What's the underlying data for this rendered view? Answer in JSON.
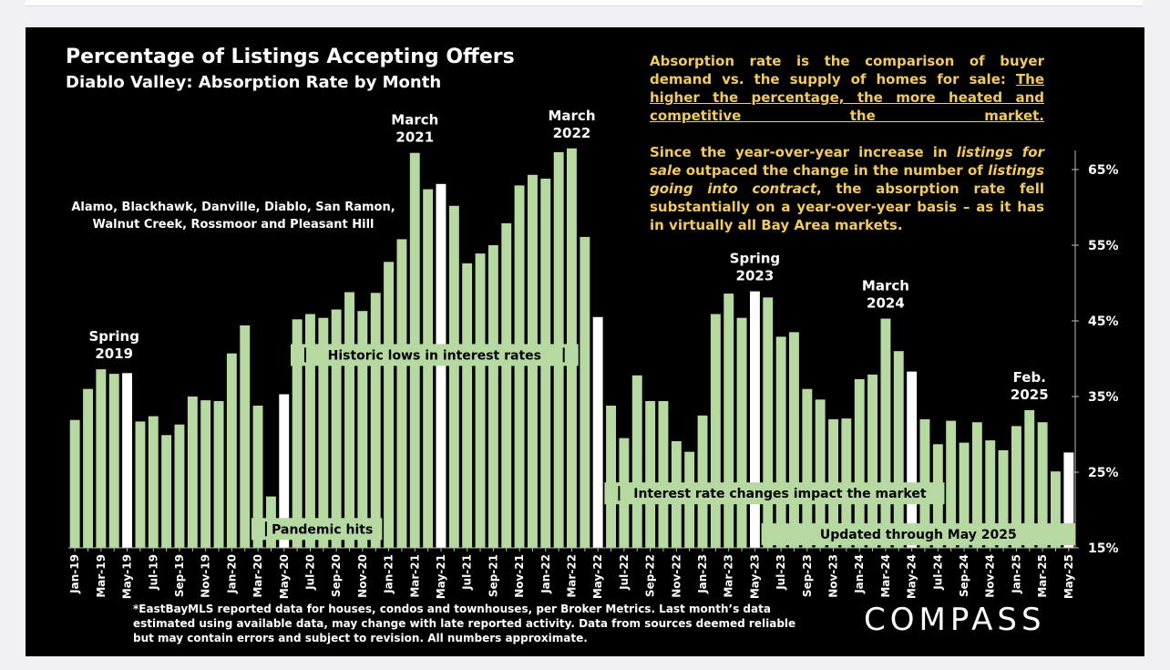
{
  "header": {
    "title": "Percentage of Listings Accepting Offers",
    "subtitle": "Diablo Valley:  Absorption Rate by Month",
    "region": "Alamo, Blackhawk, Danville, Diablo, San Ramon, Walnut Creek, Rossmoor and Pleasant Hill"
  },
  "notes": {
    "n1_part1": "Absorption rate is the comparison of buyer demand vs. the supply of homes for sale: ",
    "n1_part2": "The higher the percentage, the more heated and competitive the market.",
    "n2_a": "Since the year-over-year increase in ",
    "n2_b": "listings for sale",
    "n2_c": " outpaced the change in the number of ",
    "n2_d": "listings going into contract",
    "n2_e": ", the absorption rate fell substantially on a year-over-year basis – as it has in virtually all Bay Area markets."
  },
  "footnote": "*EastBayMLS reported data for houses, condos and townhouses, per Broker Metrics. Last month’s data estimated using available data, may change with late reported activity. Data from sources deemed reliable but may contain errors and subject to revision. All numbers approximate.",
  "logo": "COMPASS",
  "colors": {
    "bar": "#b5d9a0",
    "highlight": "#ffffff",
    "label_bg": "#b5d9a0",
    "note_text": "#f0c960"
  },
  "chart_data": {
    "type": "bar",
    "ylim": [
      15,
      68
    ],
    "yticks": [
      15,
      25,
      35,
      45,
      55,
      65
    ],
    "ytick_labels": [
      "15%",
      "25%",
      "35%",
      "45%",
      "55%",
      "65%"
    ],
    "categories": [
      "Jan-19",
      "Feb-19",
      "Mar-19",
      "Apr-19",
      "May-19",
      "Jun-19",
      "Jul-19",
      "Aug-19",
      "Sep-19",
      "Oct-19",
      "Nov-19",
      "Dec-19",
      "Jan-20",
      "Feb-20",
      "Mar-20",
      "Apr-20",
      "May-20",
      "Jun-20",
      "Jul-20",
      "Aug-20",
      "Sep-20",
      "Oct-20",
      "Nov-20",
      "Dec-20",
      "Jan-21",
      "Feb-21",
      "Mar-21",
      "Apr-21",
      "May-21",
      "Jun-21",
      "Jul-21",
      "Aug-21",
      "Sep-21",
      "Oct-21",
      "Nov-21",
      "Dec-21",
      "Jan-22",
      "Feb-22",
      "Mar-22",
      "Apr-22",
      "May-22",
      "Jun-22",
      "Jul-22",
      "Aug-22",
      "Sep-22",
      "Oct-22",
      "Nov-22",
      "Dec-22",
      "Jan-23",
      "Feb-23",
      "Mar-23",
      "Apr-23",
      "May-23",
      "Jun-23",
      "Jul-23",
      "Aug-23",
      "Sep-23",
      "Oct-23",
      "Nov-23",
      "Dec-23",
      "Jan-24",
      "Feb-24",
      "Mar-24",
      "Apr-24",
      "May-24",
      "Jun-24",
      "Jul-24",
      "Aug-24",
      "Sep-24",
      "Oct-24",
      "Nov-24",
      "Dec-24",
      "Jan-25",
      "Feb-25",
      "Mar-25",
      "Apr-25",
      "May-25"
    ],
    "xtick_labels": [
      "Jan-19",
      "Mar-19",
      "May-19",
      "Jul-19",
      "Sep-19",
      "Nov-19",
      "Jan-20",
      "Mar-20",
      "May-20",
      "Jul-20",
      "Sep-20",
      "Nov-20",
      "Jan-21",
      "Mar-21",
      "May-21",
      "Jul-21",
      "Sep-21",
      "Nov-21",
      "Jan-22",
      "Mar-22",
      "May-22",
      "Jul-22",
      "Sep-22",
      "Nov-22",
      "Jan-23",
      "Mar-23",
      "May-23",
      "Jul-23",
      "Sep-23",
      "Nov-23",
      "Jan-24",
      "Mar-24",
      "May-24",
      "Jul-24",
      "Sep-24",
      "Nov-24",
      "Jan-25",
      "Mar-25",
      "May-25"
    ],
    "values": [
      31.9,
      36.0,
      38.6,
      38.0,
      38.1,
      31.7,
      32.4,
      29.9,
      31.3,
      35.0,
      34.5,
      34.4,
      40.7,
      44.4,
      33.8,
      21.8,
      35.3,
      45.2,
      45.9,
      45.4,
      46.5,
      48.8,
      46.3,
      48.7,
      52.8,
      55.8,
      67.2,
      62.4,
      63.1,
      60.2,
      52.6,
      53.9,
      55.0,
      57.9,
      62.9,
      64.3,
      63.8,
      67.3,
      67.8,
      56.1,
      45.5,
      33.8,
      29.5,
      37.8,
      34.4,
      34.4,
      29.1,
      27.7,
      32.5,
      45.9,
      48.6,
      45.4,
      48.9,
      48.1,
      42.9,
      43.5,
      36.0,
      34.6,
      32.0,
      32.1,
      37.3,
      37.9,
      45.3,
      41.0,
      38.3,
      32.0,
      28.7,
      31.8,
      28.9,
      31.6,
      29.2,
      27.9,
      31.1,
      33.2,
      31.6,
      25.1,
      27.6
    ],
    "highlighted": [
      "May-19",
      "May-20",
      "May-21",
      "May-22",
      "May-23",
      "May-24",
      "May-25"
    ],
    "annotations": [
      {
        "lines": [
          "Spring",
          "2019"
        ],
        "at": "Apr-19"
      },
      {
        "lines": [
          "March",
          "2021"
        ],
        "at": "Mar-21"
      },
      {
        "lines": [
          "March",
          "2022"
        ],
        "at": "Mar-22"
      },
      {
        "lines": [
          "Spring",
          "2023"
        ],
        "at": "May-23"
      },
      {
        "lines": [
          "March",
          "2024"
        ],
        "at": "Mar-24"
      },
      {
        "lines": [
          "Feb.",
          "2025"
        ],
        "at": "Feb-25"
      }
    ],
    "range_labels": [
      {
        "text": "Historic lows in interest rates",
        "from": "Jun-20",
        "to": "Mar-22",
        "y": 40.5,
        "bracket": "both"
      },
      {
        "text": "Pandemic hits",
        "from": "Mar-20",
        "to": "Dec-20",
        "y": 17.5,
        "bracket": "left"
      },
      {
        "text": "Interest rate changes impact the market",
        "from": "Jun-22",
        "to": "Jul-24",
        "y": 22.2,
        "bracket": "left"
      },
      {
        "text": "Updated through May 2025",
        "from": "Jun-23",
        "to": "May-25",
        "y": 16.8,
        "bracket": "none"
      }
    ]
  }
}
